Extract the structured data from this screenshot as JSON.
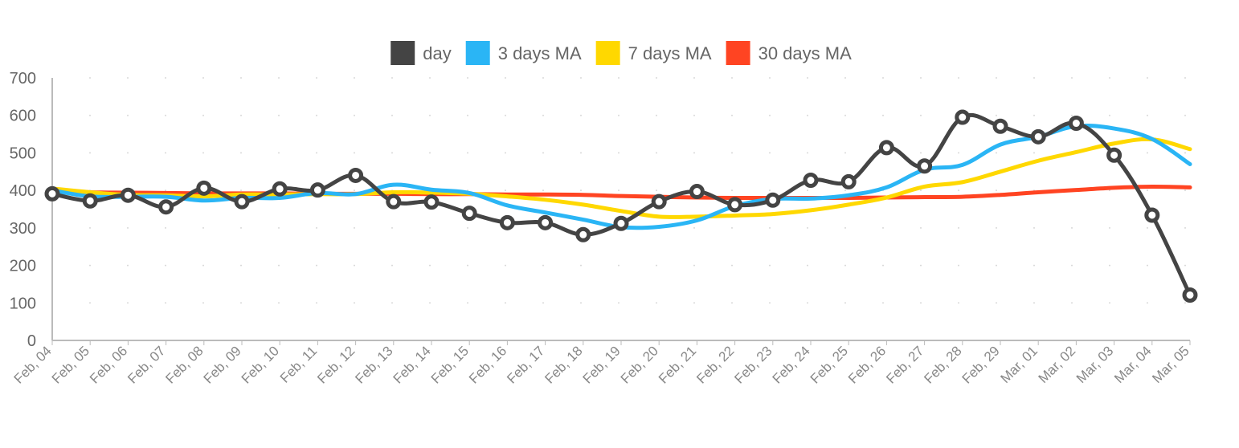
{
  "chart_data": {
    "type": "line",
    "title": "",
    "xlabel": "",
    "ylabel": "",
    "ylim": [
      0,
      700
    ],
    "yticks": [
      0,
      100,
      200,
      300,
      400,
      500,
      600,
      700
    ],
    "grid": "dotted",
    "legend_position": "top-center",
    "categories": [
      "Feb, 04",
      "Feb, 05",
      "Feb, 06",
      "Feb, 07",
      "Feb, 08",
      "Feb, 09",
      "Feb, 10",
      "Feb, 11",
      "Feb, 12",
      "Feb, 13",
      "Feb, 14",
      "Feb, 15",
      "Feb, 16",
      "Feb, 17",
      "Feb, 18",
      "Feb, 19",
      "Feb, 20",
      "Feb, 21",
      "Feb, 22",
      "Feb, 23",
      "Feb, 24",
      "Feb, 25",
      "Feb, 26",
      "Feb, 27",
      "Feb, 28",
      "Feb, 29",
      "Mar, 01",
      "Mar, 02",
      "Mar, 03",
      "Mar, 04",
      "Mar, 05"
    ],
    "series": [
      {
        "name": "day",
        "color": "#444444",
        "markers": true,
        "values": [
          391,
          372,
          387,
          356,
          406,
          370,
          404,
          401,
          440,
          370,
          369,
          339,
          314,
          314,
          282,
          312,
          370,
          397,
          362,
          374,
          427,
          423,
          514,
          465,
          595,
          571,
          543,
          579,
          494,
          334,
          121
        ]
      },
      {
        "name": "3 days MA",
        "color": "#2ab5f5",
        "markers": false,
        "values": [
          400,
          384,
          383,
          383,
          373,
          380,
          380,
          393,
          390,
          415,
          402,
          393,
          360,
          341,
          322,
          302,
          303,
          320,
          358,
          377,
          378,
          387,
          408,
          455,
          468,
          522,
          543,
          571,
          565,
          537,
          470
        ]
      },
      {
        "name": "7 days MA",
        "color": "#ffd800",
        "markers": false,
        "values": [
          405,
          395,
          388,
          387,
          384,
          389,
          389,
          390,
          390,
          395,
          394,
          391,
          384,
          375,
          362,
          345,
          330,
          330,
          333,
          337,
          347,
          362,
          381,
          410,
          422,
          450,
          479,
          502,
          525,
          536,
          510
        ]
      },
      {
        "name": "30 days MA",
        "color": "#ff4422",
        "markers": false,
        "values": [
          400,
          395,
          394,
          393,
          392,
          392,
          392,
          391,
          391,
          391,
          390,
          390,
          389,
          389,
          388,
          385,
          383,
          381,
          380,
          380,
          380,
          380,
          381,
          382,
          383,
          388,
          395,
          401,
          407,
          410,
          408
        ]
      }
    ]
  }
}
